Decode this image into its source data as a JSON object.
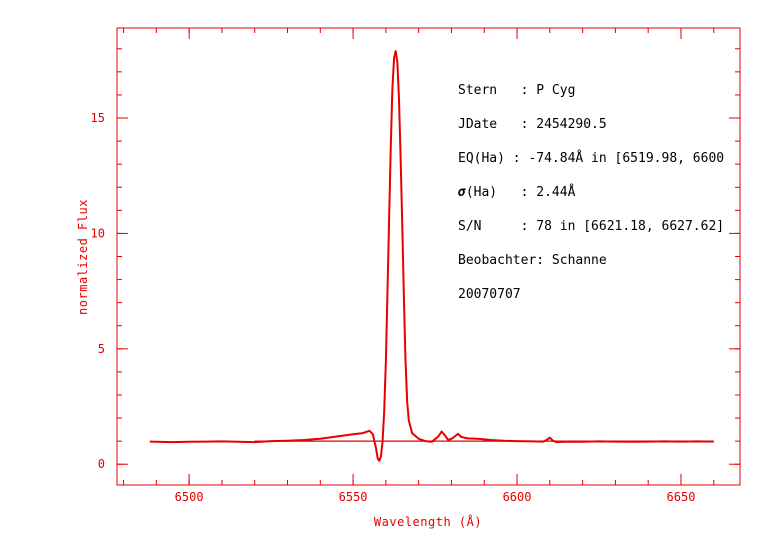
{
  "chart_data": {
    "type": "line",
    "xlabel": "Wavelength (Å)",
    "ylabel": "normalized Flux",
    "xlim": [
      6478,
      6668
    ],
    "ylim": [
      -0.9,
      18.9
    ],
    "x_ticks": [
      6500,
      6550,
      6600,
      6650
    ],
    "x_tick_labels": [
      "6500",
      "6550",
      "6600",
      "6650"
    ],
    "y_ticks": [
      0,
      5,
      10,
      15
    ],
    "y_tick_labels": [
      "0",
      "5",
      "10",
      "15"
    ],
    "x_minor_step": 10,
    "y_minor_step": 1,
    "grid": false,
    "colors": {
      "curve": "#e60000",
      "axes": "#e60000",
      "annotation_text": "#000000"
    },
    "series": [
      {
        "style": "spectrum",
        "x": [
          6488,
          6495,
          6500,
          6505,
          6510,
          6515,
          6520,
          6525,
          6530,
          6535,
          6540,
          6545,
          6550,
          6553,
          6555,
          6556,
          6557,
          6557.5,
          6558,
          6558.5,
          6559,
          6559.5,
          6560,
          6560.5,
          6561,
          6561.5,
          6562,
          6562.5,
          6563,
          6563.5,
          6564,
          6564.5,
          6565,
          6565.5,
          6566,
          6566.5,
          6567,
          6568,
          6570,
          6572,
          6574,
          6576,
          6577,
          6578,
          6579,
          6580,
          6581,
          6582,
          6583,
          6585,
          6588,
          6592,
          6596,
          6600,
          6605,
          6608,
          6609,
          6610,
          6611,
          6612,
          6615,
          6620,
          6625,
          6630,
          6635,
          6640,
          6645,
          6650,
          6655,
          6660
        ],
        "y": [
          0.98,
          0.96,
          0.97,
          0.98,
          0.99,
          0.97,
          0.96,
          1.0,
          1.02,
          1.05,
          1.1,
          1.2,
          1.3,
          1.35,
          1.45,
          1.3,
          0.7,
          0.25,
          0.15,
          0.35,
          1.0,
          2.3,
          4.5,
          7.5,
          10.8,
          13.8,
          16.3,
          17.6,
          17.9,
          17.4,
          15.8,
          13.3,
          10.3,
          7.2,
          4.5,
          2.7,
          1.9,
          1.35,
          1.1,
          1.0,
          0.97,
          1.2,
          1.42,
          1.25,
          1.05,
          1.1,
          1.2,
          1.32,
          1.18,
          1.12,
          1.1,
          1.05,
          1.02,
          1.0,
          0.99,
          0.98,
          1.05,
          1.15,
          1.02,
          0.96,
          0.98,
          0.97,
          0.99,
          0.98,
          0.97,
          0.98,
          0.99,
          0.98,
          0.99,
          0.98
        ]
      },
      {
        "style": "continuum",
        "x": [
          6520,
          6660
        ],
        "y": [
          1.0,
          1.0
        ]
      }
    ]
  },
  "info": {
    "line1": "Stern   : P Cyg",
    "line2": "JDate   : 2454290.5",
    "line3": "EQ(Ha) : -74.84Å in [6519.98, 6600",
    "line4_symbol": "σ",
    "line4_rest": "(Ha)   : 2.44Å",
    "line5": "S/N     : 78 in [6621.18, 6627.62]",
    "line6": "Beobachter: Schanne",
    "line7": "20070707"
  }
}
